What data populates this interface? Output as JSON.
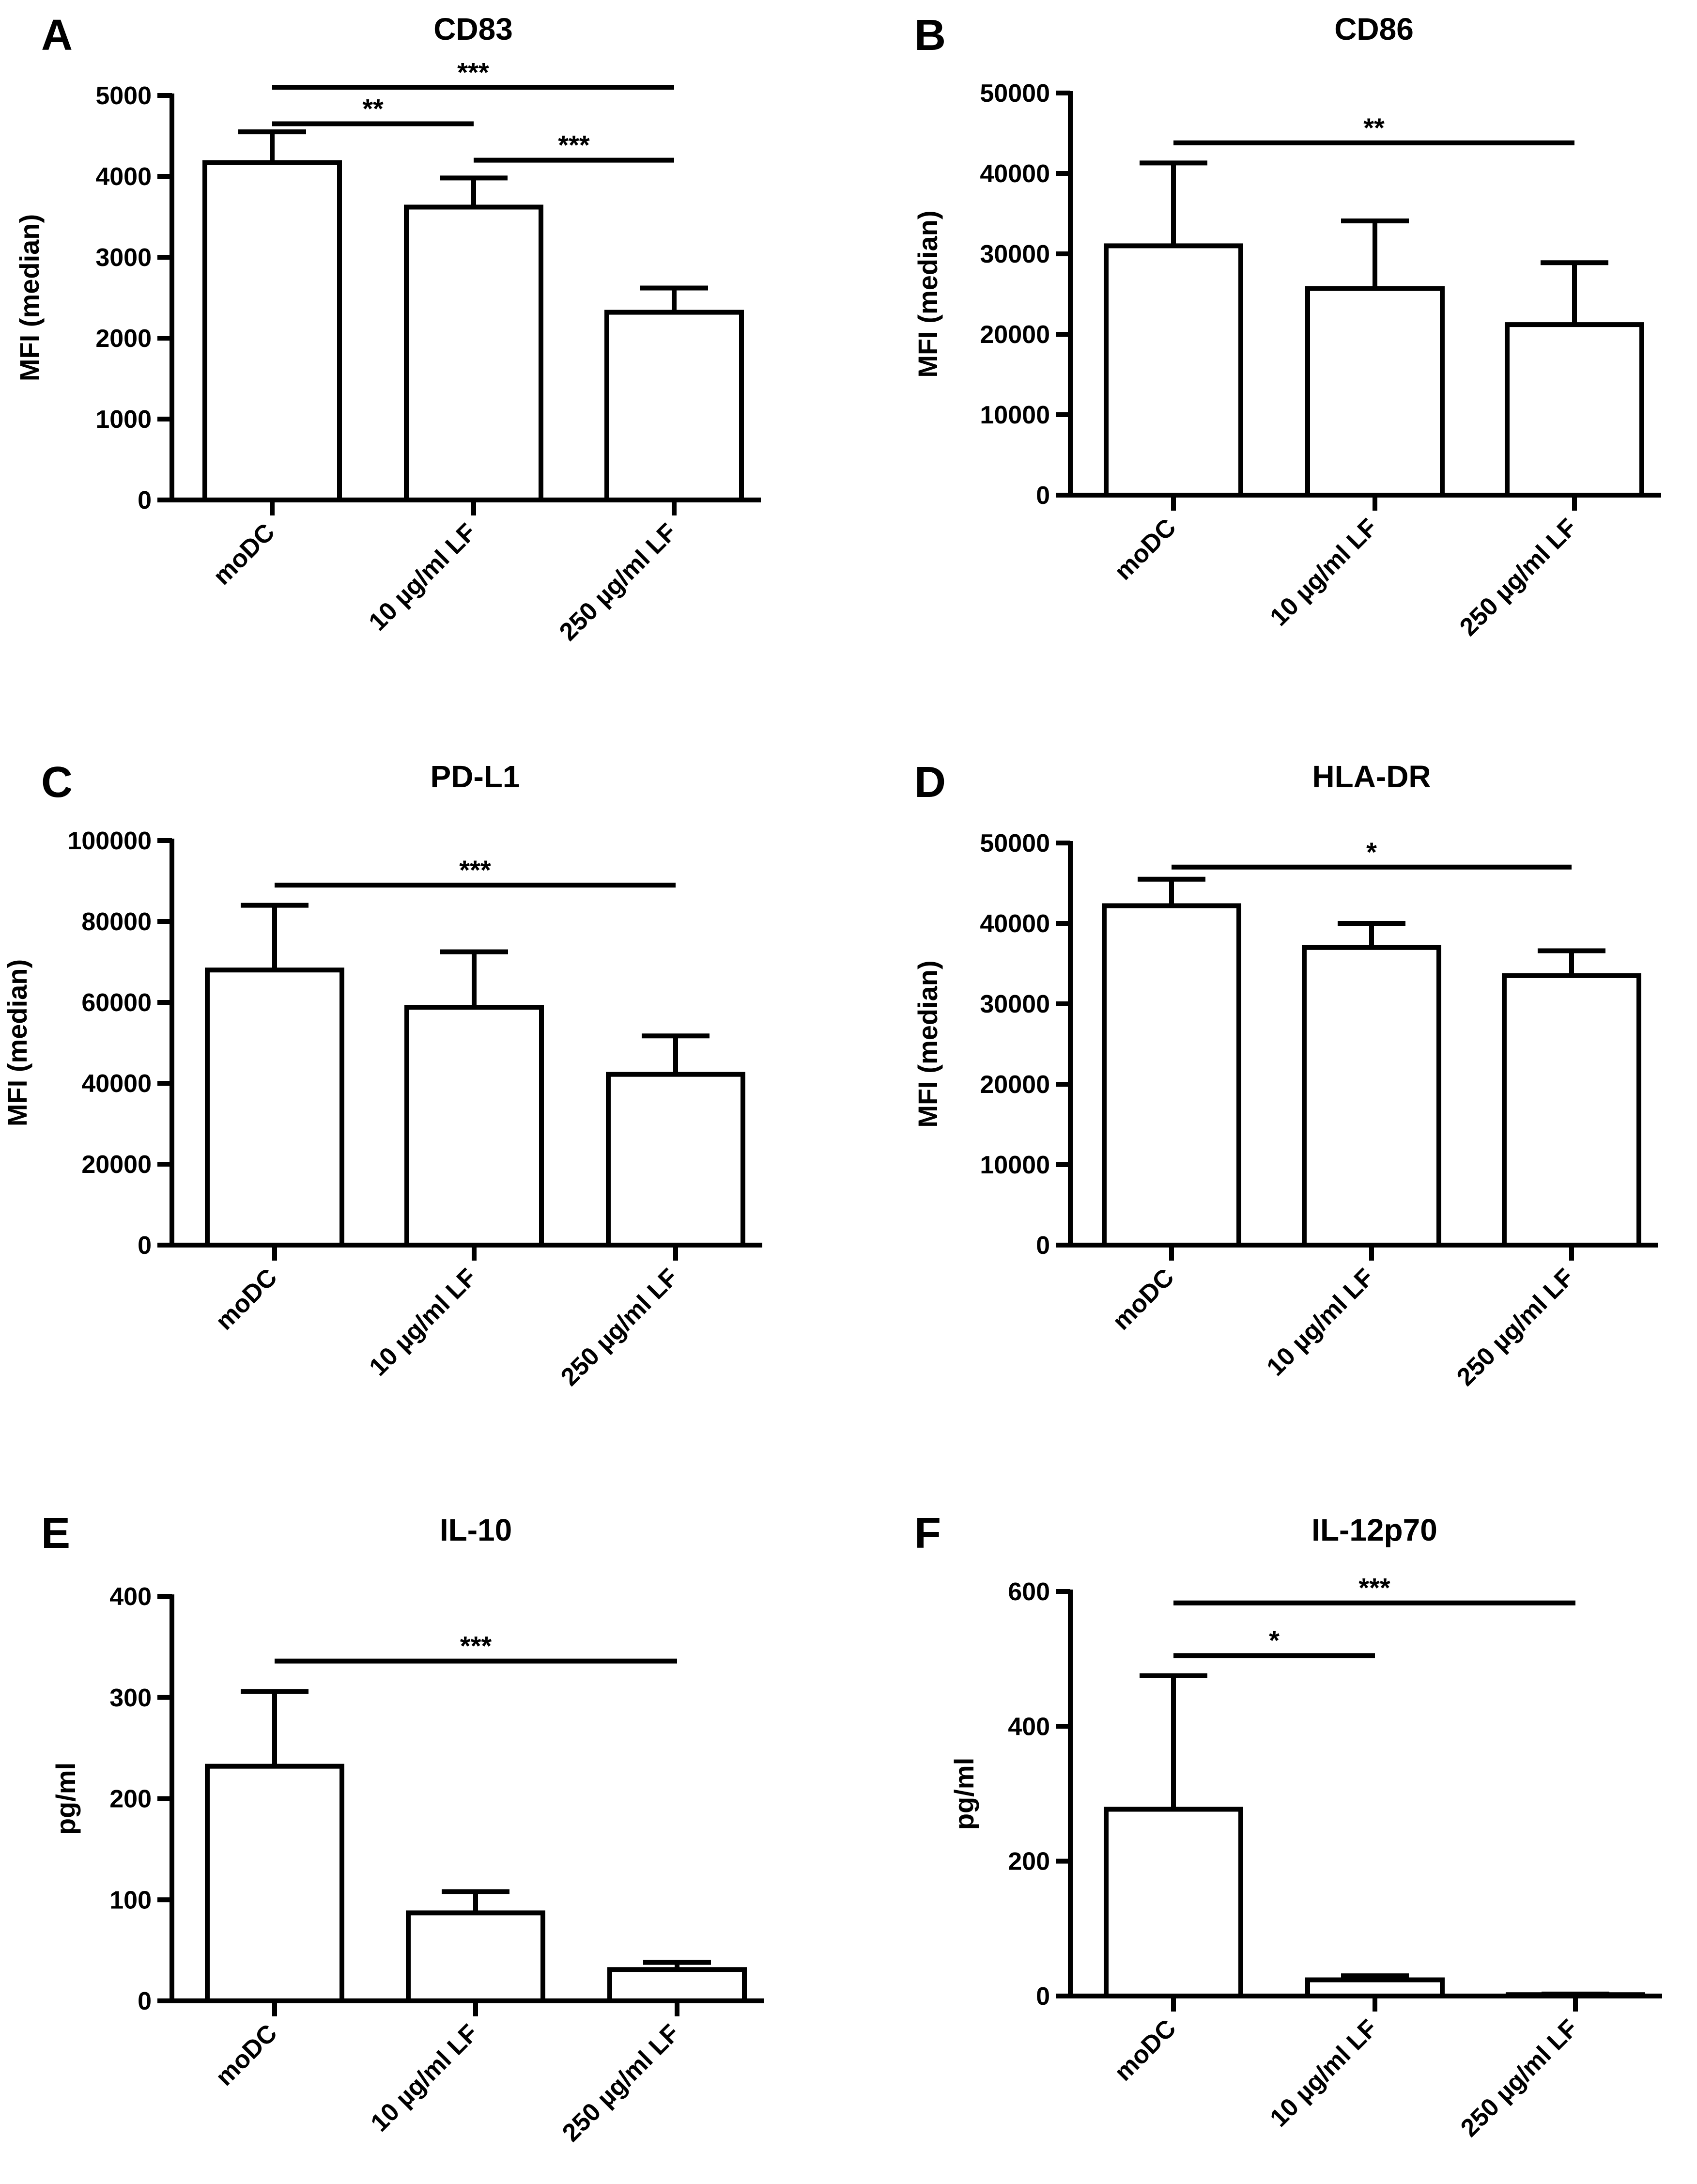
{
  "figure": {
    "panels": [
      {
        "id": "A",
        "letter": "A"
      },
      {
        "id": "B",
        "letter": "B"
      },
      {
        "id": "C",
        "letter": "C"
      },
      {
        "id": "D",
        "letter": "D"
      },
      {
        "id": "E",
        "letter": "E"
      },
      {
        "id": "F",
        "letter": "F"
      }
    ]
  },
  "chart_data": [
    {
      "panel": "A",
      "type": "bar",
      "title": "CD83",
      "categories": [
        "moDC",
        "10 µg/ml LF",
        "250 µg/ml LF"
      ],
      "values": [
        4170,
        3620,
        2320
      ],
      "errors": [
        380,
        360,
        300
      ],
      "ylabel": "MFI (median)",
      "ylim": [
        0,
        5000
      ],
      "yticks": [
        0,
        1000,
        2000,
        3000,
        4000,
        5000
      ],
      "ytick_labels": [
        "0",
        "1000",
        "2000",
        "3000",
        "4000",
        "5000"
      ],
      "significance": [
        {
          "from": 0,
          "to": 2,
          "label": "***",
          "y": 5100
        },
        {
          "from": 0,
          "to": 1,
          "label": "**",
          "y": 4650
        },
        {
          "from": 1,
          "to": 2,
          "label": "***",
          "y": 4200
        }
      ]
    },
    {
      "panel": "B",
      "type": "bar",
      "title": "CD86",
      "categories": [
        "moDC",
        "10 µg/ml LF",
        "250 µg/ml LF"
      ],
      "values": [
        31000,
        25700,
        21200
      ],
      "errors": [
        10300,
        8400,
        7700
      ],
      "ylabel": "MFI (median)",
      "ylim": [
        0,
        50000
      ],
      "yticks": [
        0,
        10000,
        20000,
        30000,
        40000,
        50000
      ],
      "ytick_labels": [
        "0",
        "10000",
        "20000",
        "30000",
        "40000",
        "50000"
      ],
      "significance": [
        {
          "from": 0,
          "to": 2,
          "label": "**",
          "y": 43800
        }
      ]
    },
    {
      "panel": "C",
      "type": "bar",
      "title": "PD-L1",
      "categories": [
        "moDC",
        "10 µg/ml LF",
        "250 µg/ml LF"
      ],
      "values": [
        68000,
        58800,
        42200
      ],
      "errors": [
        16000,
        13700,
        9500
      ],
      "ylabel": "MFI (median)",
      "ylim": [
        0,
        100000
      ],
      "yticks": [
        0,
        20000,
        40000,
        60000,
        80000,
        100000
      ],
      "ytick_labels": [
        "0",
        "20000",
        "40000",
        "60000",
        "80000",
        "100000"
      ],
      "significance": [
        {
          "from": 0,
          "to": 2,
          "label": "***",
          "y": 89000
        }
      ]
    },
    {
      "panel": "D",
      "type": "bar",
      "title": "HLA-DR",
      "categories": [
        "moDC",
        "10 µg/ml LF",
        "250 µg/ml LF"
      ],
      "values": [
        42200,
        37000,
        33500
      ],
      "errors": [
        3300,
        3000,
        3100
      ],
      "ylabel": "MFI (median)",
      "ylim": [
        0,
        50000
      ],
      "yticks": [
        0,
        10000,
        20000,
        30000,
        40000,
        50000
      ],
      "ytick_labels": [
        "0",
        "10000",
        "20000",
        "30000",
        "40000",
        "50000"
      ],
      "significance": [
        {
          "from": 0,
          "to": 2,
          "label": "*",
          "y": 47000
        }
      ]
    },
    {
      "panel": "E",
      "type": "bar",
      "title": "IL-10",
      "categories": [
        "moDC",
        "10 µg/ml LF",
        "250 µg/ml LF"
      ],
      "values": [
        232,
        87,
        31
      ],
      "errors": [
        74,
        21,
        7
      ],
      "ylabel": "pg/ml",
      "ylim": [
        0,
        400
      ],
      "yticks": [
        0,
        100,
        200,
        300,
        400
      ],
      "ytick_labels": [
        "0",
        "100",
        "200",
        "300",
        "400"
      ],
      "significance": [
        {
          "from": 0,
          "to": 2,
          "label": "***",
          "y": 336
        }
      ]
    },
    {
      "panel": "F",
      "type": "bar",
      "title": "IL-12p70",
      "categories": [
        "moDC",
        "10 µg/ml LF",
        "250 µg/ml LF"
      ],
      "values": [
        277,
        24,
        2
      ],
      "errors": [
        198,
        6,
        1
      ],
      "ylabel": "pg/ml",
      "ylim": [
        0,
        600
      ],
      "yticks": [
        0,
        200,
        400,
        600
      ],
      "ytick_labels": [
        "0",
        "200",
        "400",
        "600"
      ],
      "significance": [
        {
          "from": 0,
          "to": 2,
          "label": "***",
          "y": 583
        },
        {
          "from": 0,
          "to": 1,
          "label": "*",
          "y": 505
        }
      ]
    }
  ]
}
